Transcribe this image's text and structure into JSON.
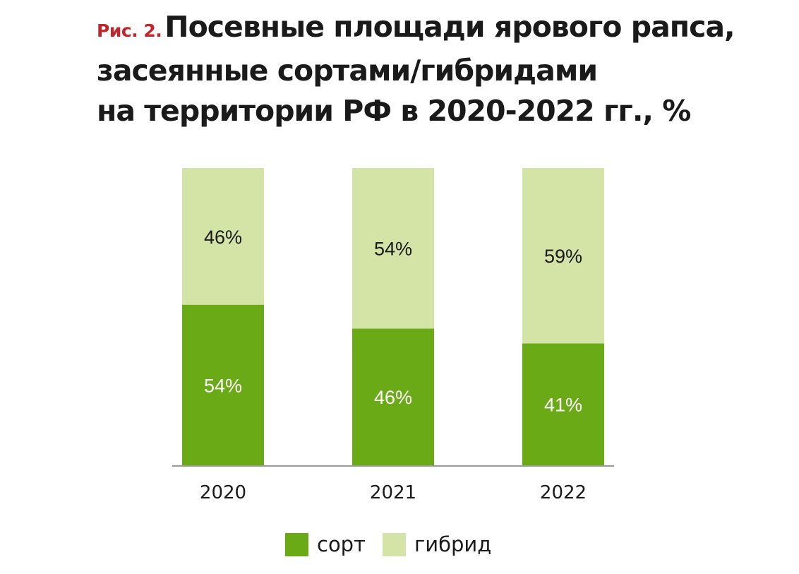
{
  "figure_label": "Рис. 2.",
  "title_lines": [
    "Посевные площади ярового рапса,",
    "засеянные сортами/гибридами",
    "на территории РФ в 2020-2022 гг., %"
  ],
  "colors": {
    "sort": "#6aaa17",
    "hybrid": "#d4e4a6",
    "axis": "#9a9a9a",
    "figure_label": "#c0272d"
  },
  "chart_data": {
    "type": "bar",
    "stacked": true,
    "categories": [
      "2020",
      "2021",
      "2022"
    ],
    "series": [
      {
        "name": "сорт",
        "values": [
          54,
          46,
          41
        ],
        "labels": [
          "54%",
          "46%",
          "41%"
        ]
      },
      {
        "name": "гибрид",
        "values": [
          46,
          54,
          59
        ],
        "labels": [
          "46%",
          "54%",
          "59%"
        ]
      }
    ],
    "ylim": [
      0,
      100
    ],
    "grid": false,
    "legend_position": "bottom"
  },
  "legend": [
    {
      "label": "сорт",
      "color": "#6aaa17"
    },
    {
      "label": "гибрид",
      "color": "#d4e4a6"
    }
  ]
}
